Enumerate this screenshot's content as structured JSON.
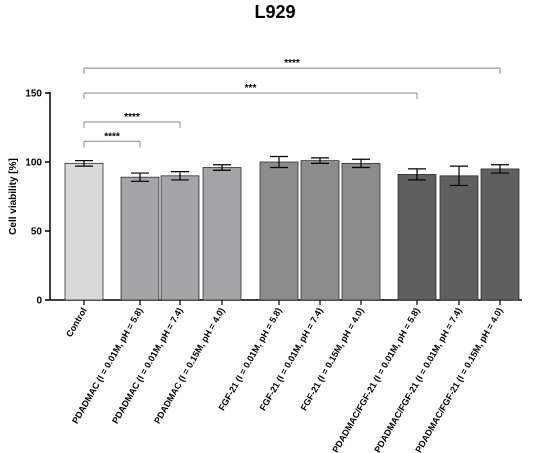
{
  "chart_data": {
    "type": "bar",
    "title": "L929",
    "ylabel": "Cell viability [%]",
    "xlabel": "",
    "ylim": [
      0,
      150
    ],
    "yticks": [
      0,
      50,
      100,
      150
    ],
    "categories": [
      "Control",
      "PDADMAC (I = 0.01M, pH = 5.8)",
      "PDADMAC (I = 0.01M, pH = 7.4)",
      "PDADMAC (I = 0.15M, pH = 4.0)",
      "FGF-21 (I = 0.01M, pH = 5.8)",
      "FGF-21 (I = 0.01M, pH = 7.4)",
      "FGF-21 (I = 0.15M, pH = 4.0)",
      "PDADMAC/FGF-21 (I = 0.01M, pH = 5.8)",
      "PDADMAC/FGF-21 (I = 0.01M, pH = 7.4)",
      "PDADMAC/FGF-21 (I = 0.15M, pH = 4.0)"
    ],
    "values": [
      99,
      89,
      90,
      96,
      100,
      101,
      99,
      91,
      90,
      95
    ],
    "errors": [
      2,
      3,
      3,
      2,
      4,
      2,
      3,
      4,
      7,
      3
    ],
    "colors": [
      "#d9d9d9",
      "#a3a3a8",
      "#a3a3a8",
      "#a3a3a8",
      "#8c8c8c",
      "#8c8c8c",
      "#8c8c8c",
      "#5f5f5f",
      "#5f5f5f",
      "#5f5f5f"
    ],
    "significance": [
      {
        "from": 0,
        "to": 9,
        "label": "****",
        "level": 168
      },
      {
        "from": 0,
        "to": 7,
        "label": "***",
        "level": 150
      },
      {
        "from": 0,
        "to": 2,
        "label": "****",
        "level": 129
      },
      {
        "from": 0,
        "to": 1,
        "label": "****",
        "level": 115
      }
    ]
  }
}
